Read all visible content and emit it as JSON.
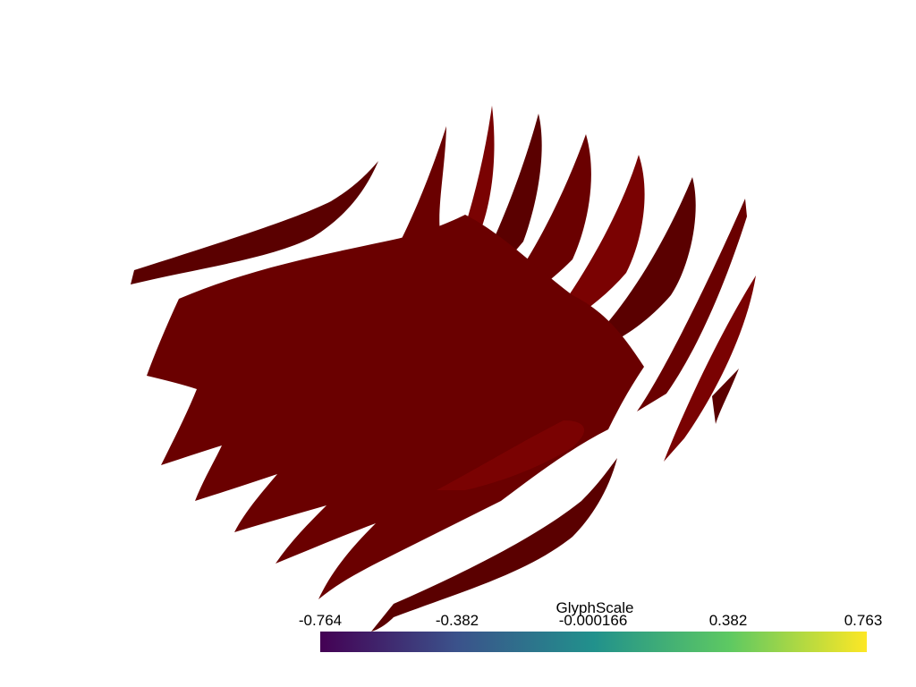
{
  "scalar_bar": {
    "title": "GlyphScale",
    "tick_labels": [
      "-0.764",
      "-0.382",
      "-0.000166",
      "0.382",
      "0.763"
    ],
    "range": [
      -0.764,
      0.763
    ],
    "colormap": [
      "#440154",
      "#3b528b",
      "#21918c",
      "#5ec962",
      "#fde725"
    ]
  },
  "surface": {
    "color": "#6a0000",
    "shade_dark": "#5a0000",
    "shade_light": "#7a0202"
  }
}
